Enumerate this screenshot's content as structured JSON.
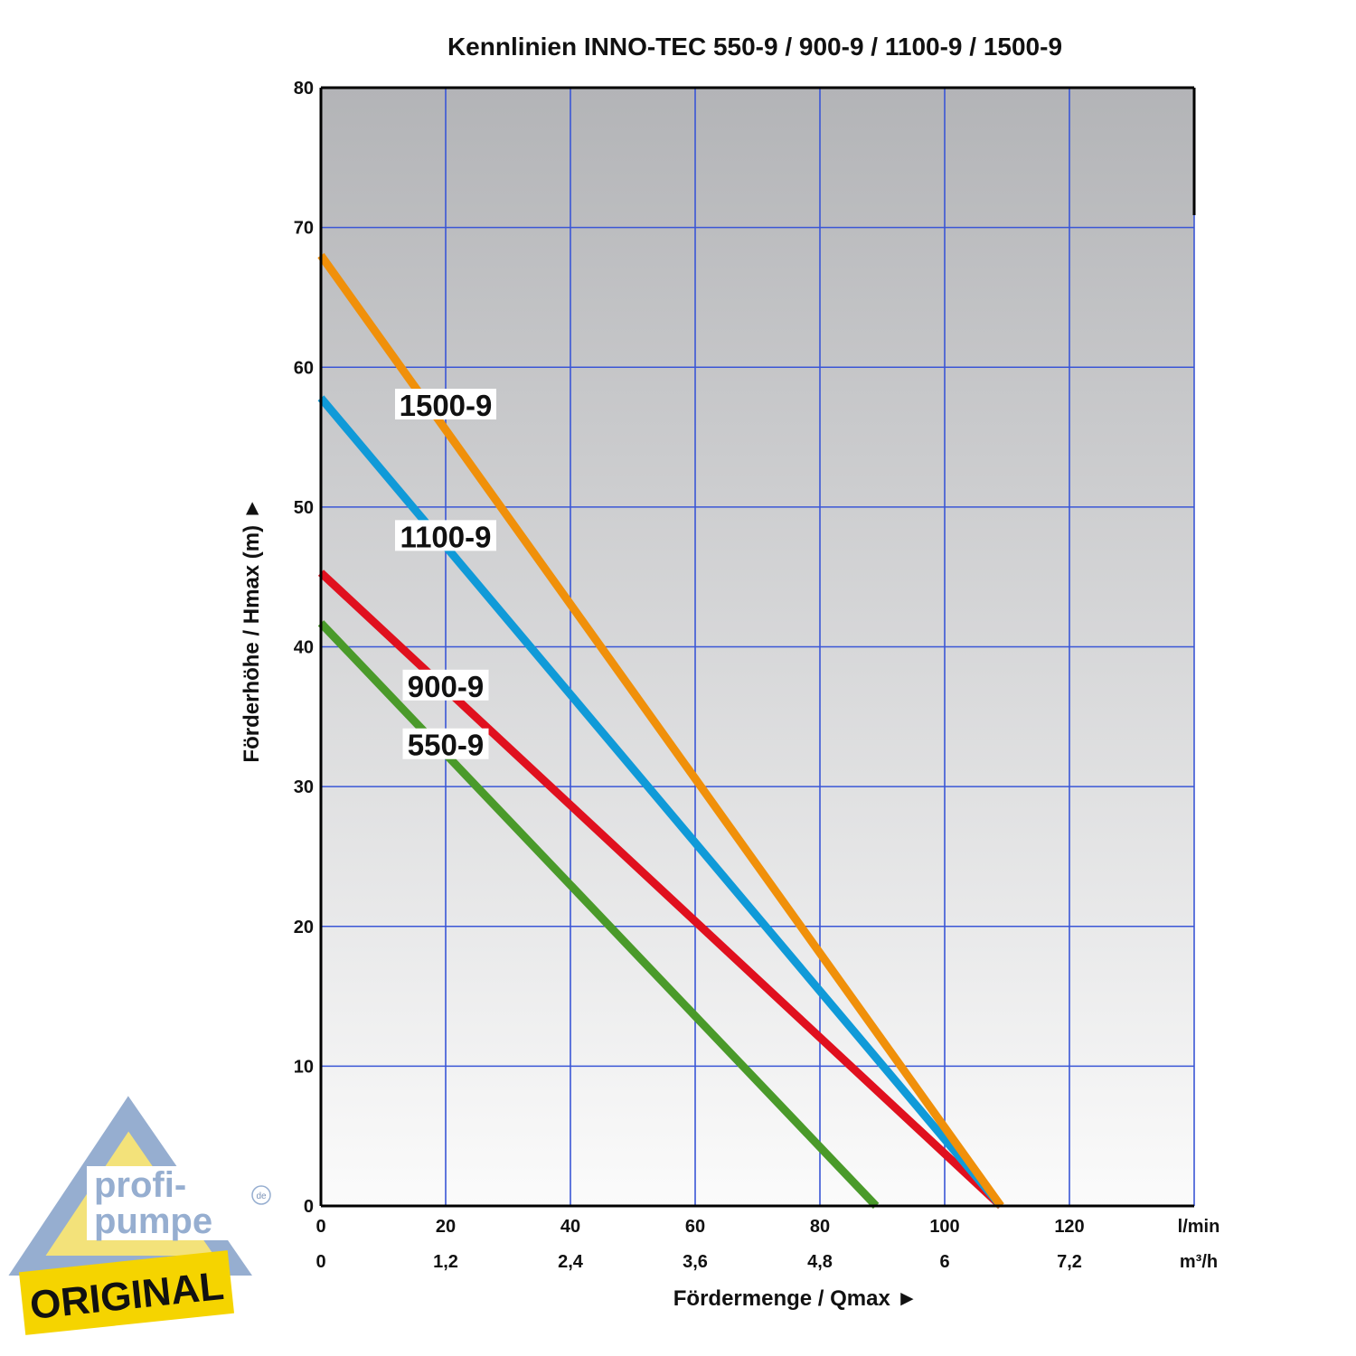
{
  "chart_data": {
    "type": "line",
    "title": "Kennlinien INNO-TEC 550-9 / 900-9 / 1100-9 / 1500-9",
    "xlabel": "Fördermenge / Qmax ►",
    "ylabel": "Förderhöhe / Hmax (m) ►",
    "xlim": [
      0,
      140
    ],
    "ylim": [
      0,
      80
    ],
    "x_ticks": [
      "0",
      "20",
      "40",
      "60",
      "80",
      "100",
      "120"
    ],
    "x_ticks_secondary": [
      "0",
      "1,2",
      "2,4",
      "3,6",
      "4,8",
      "6",
      "7,2"
    ],
    "x_unit": "l/min",
    "x_unit_secondary": "m³/h",
    "y_ticks": [
      "0",
      "10",
      "20",
      "30",
      "40",
      "50",
      "60",
      "70",
      "80"
    ],
    "grid": true,
    "series": [
      {
        "name": "550-9",
        "x": [
          0,
          89
        ],
        "y": [
          41.7,
          0
        ],
        "color": "#4a9a2a",
        "label_at": [
          20,
          33
        ]
      },
      {
        "name": "900-9",
        "x": [
          0,
          109
        ],
        "y": [
          45.3,
          0
        ],
        "color": "#e0101e",
        "label_at": [
          20,
          37.2
        ]
      },
      {
        "name": "1100-9",
        "x": [
          0,
          109
        ],
        "y": [
          57.8,
          0
        ],
        "color": "#109ad8",
        "label_at": [
          20,
          47.9
        ]
      },
      {
        "name": "1500-9",
        "x": [
          0,
          109
        ],
        "y": [
          68.0,
          0
        ],
        "color": "#f0900a",
        "label_at": [
          20,
          57.3
        ]
      }
    ]
  },
  "logo": {
    "line1": "profi-",
    "line2": "pumpe",
    "tld": "de",
    "badge": "ORIGINAL"
  }
}
